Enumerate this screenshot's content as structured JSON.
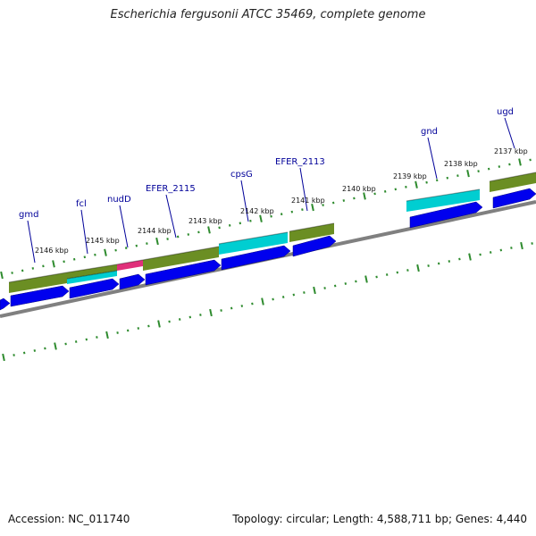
{
  "title": "Escherichia fergusonii ATCC 35469, complete genome",
  "footer": {
    "accession": "Accession: NC_011740",
    "stats": "Topology: circular; Length: 4,588,711 bp; Genes: 4,440"
  },
  "colors": {
    "cds_arrow": "#0000ee",
    "gene_olive": "#6b8e23",
    "gene_cyan": "#00ced1",
    "gene_magenta": "#e0307a",
    "backbone": "#808080",
    "tick": "#2e8b2e",
    "label": "#000099"
  },
  "tick_labels": [
    "2137 kbp",
    "2138 kbp",
    "2139 kbp",
    "2140 kbp",
    "2141 kbp",
    "2142 kbp",
    "2143 kbp",
    "2144 kbp",
    "2145 kbp",
    "2146 kbp"
  ],
  "gene_labels": [
    "ugd",
    "gnd",
    "EFER_2113",
    "cpsG",
    "EFER_2115",
    "nudD",
    "fcl",
    "gmd"
  ]
}
